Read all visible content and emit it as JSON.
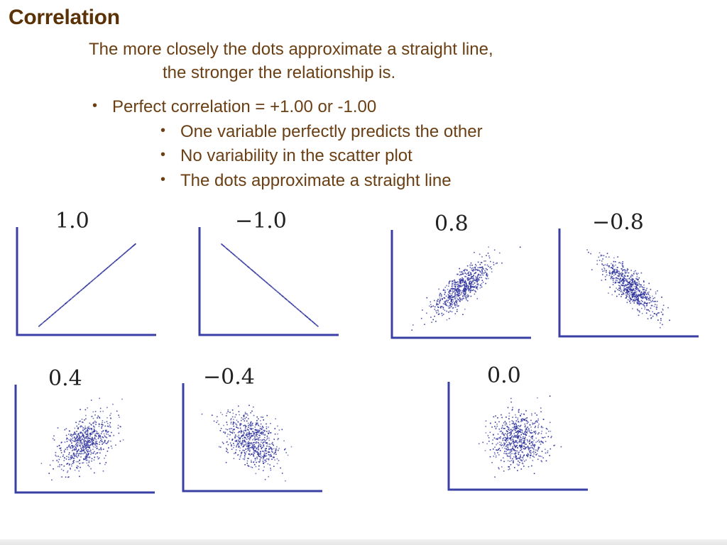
{
  "colors": {
    "heading": "#5b3106",
    "body_text": "#6b3f14",
    "axis": "#3a3fa6",
    "dots": "#2b2f9a"
  },
  "slide": {
    "title": "Correlation",
    "subtitle_line1": "The more closely the dots approximate a straight line,",
    "subtitle_line2": "the stronger the relationship is.",
    "bullets": [
      "Perfect correlation = +1.00 or -1.00",
      "One variable perfectly predicts the other",
      "No variability in the scatter plot",
      "The dots approximate a straight line"
    ],
    "bullet_char": "•"
  },
  "panels": [
    {
      "label": "1.0",
      "r": 1.0
    },
    {
      "label": "−1.0",
      "r": -1.0
    },
    {
      "label": "0.8",
      "r": 0.8
    },
    {
      "label": "−0.8",
      "r": -0.8
    },
    {
      "label": "0.4",
      "r": 0.4
    },
    {
      "label": "−0.4",
      "r": -0.4
    },
    {
      "label": "0.0",
      "r": 0.0
    }
  ]
}
